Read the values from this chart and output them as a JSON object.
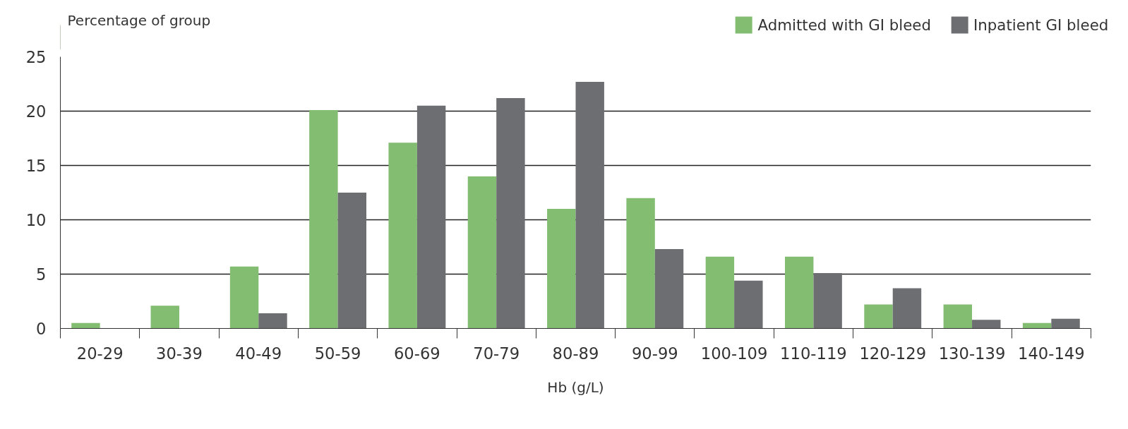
{
  "chart_data": {
    "type": "bar",
    "ylabel": "Percentage of group",
    "xlabel": "Hb (g/L)",
    "categories": [
      "20-29",
      "30-39",
      "40-49",
      "50-59",
      "60-69",
      "70-79",
      "80-89",
      "90-99",
      "100-109",
      "110-119",
      "120-129",
      "130-139",
      "140-149"
    ],
    "series": [
      {
        "name": "Admitted with GI bleed",
        "color": "#82bd72",
        "values": [
          0.5,
          2.1,
          5.7,
          20.1,
          17.1,
          14.0,
          11.0,
          12.0,
          6.6,
          6.6,
          2.2,
          2.2,
          0.5
        ]
      },
      {
        "name": "Inpatient GI bleed",
        "color": "#6d6e71",
        "values": [
          0,
          0,
          1.4,
          12.5,
          20.5,
          21.2,
          22.7,
          7.3,
          4.4,
          5.1,
          3.7,
          0.8,
          0.9
        ]
      }
    ],
    "ylim": [
      0,
      25
    ],
    "yticks": [
      0,
      5,
      10,
      15,
      20,
      25
    ],
    "grid": "y",
    "legend": "top right"
  }
}
